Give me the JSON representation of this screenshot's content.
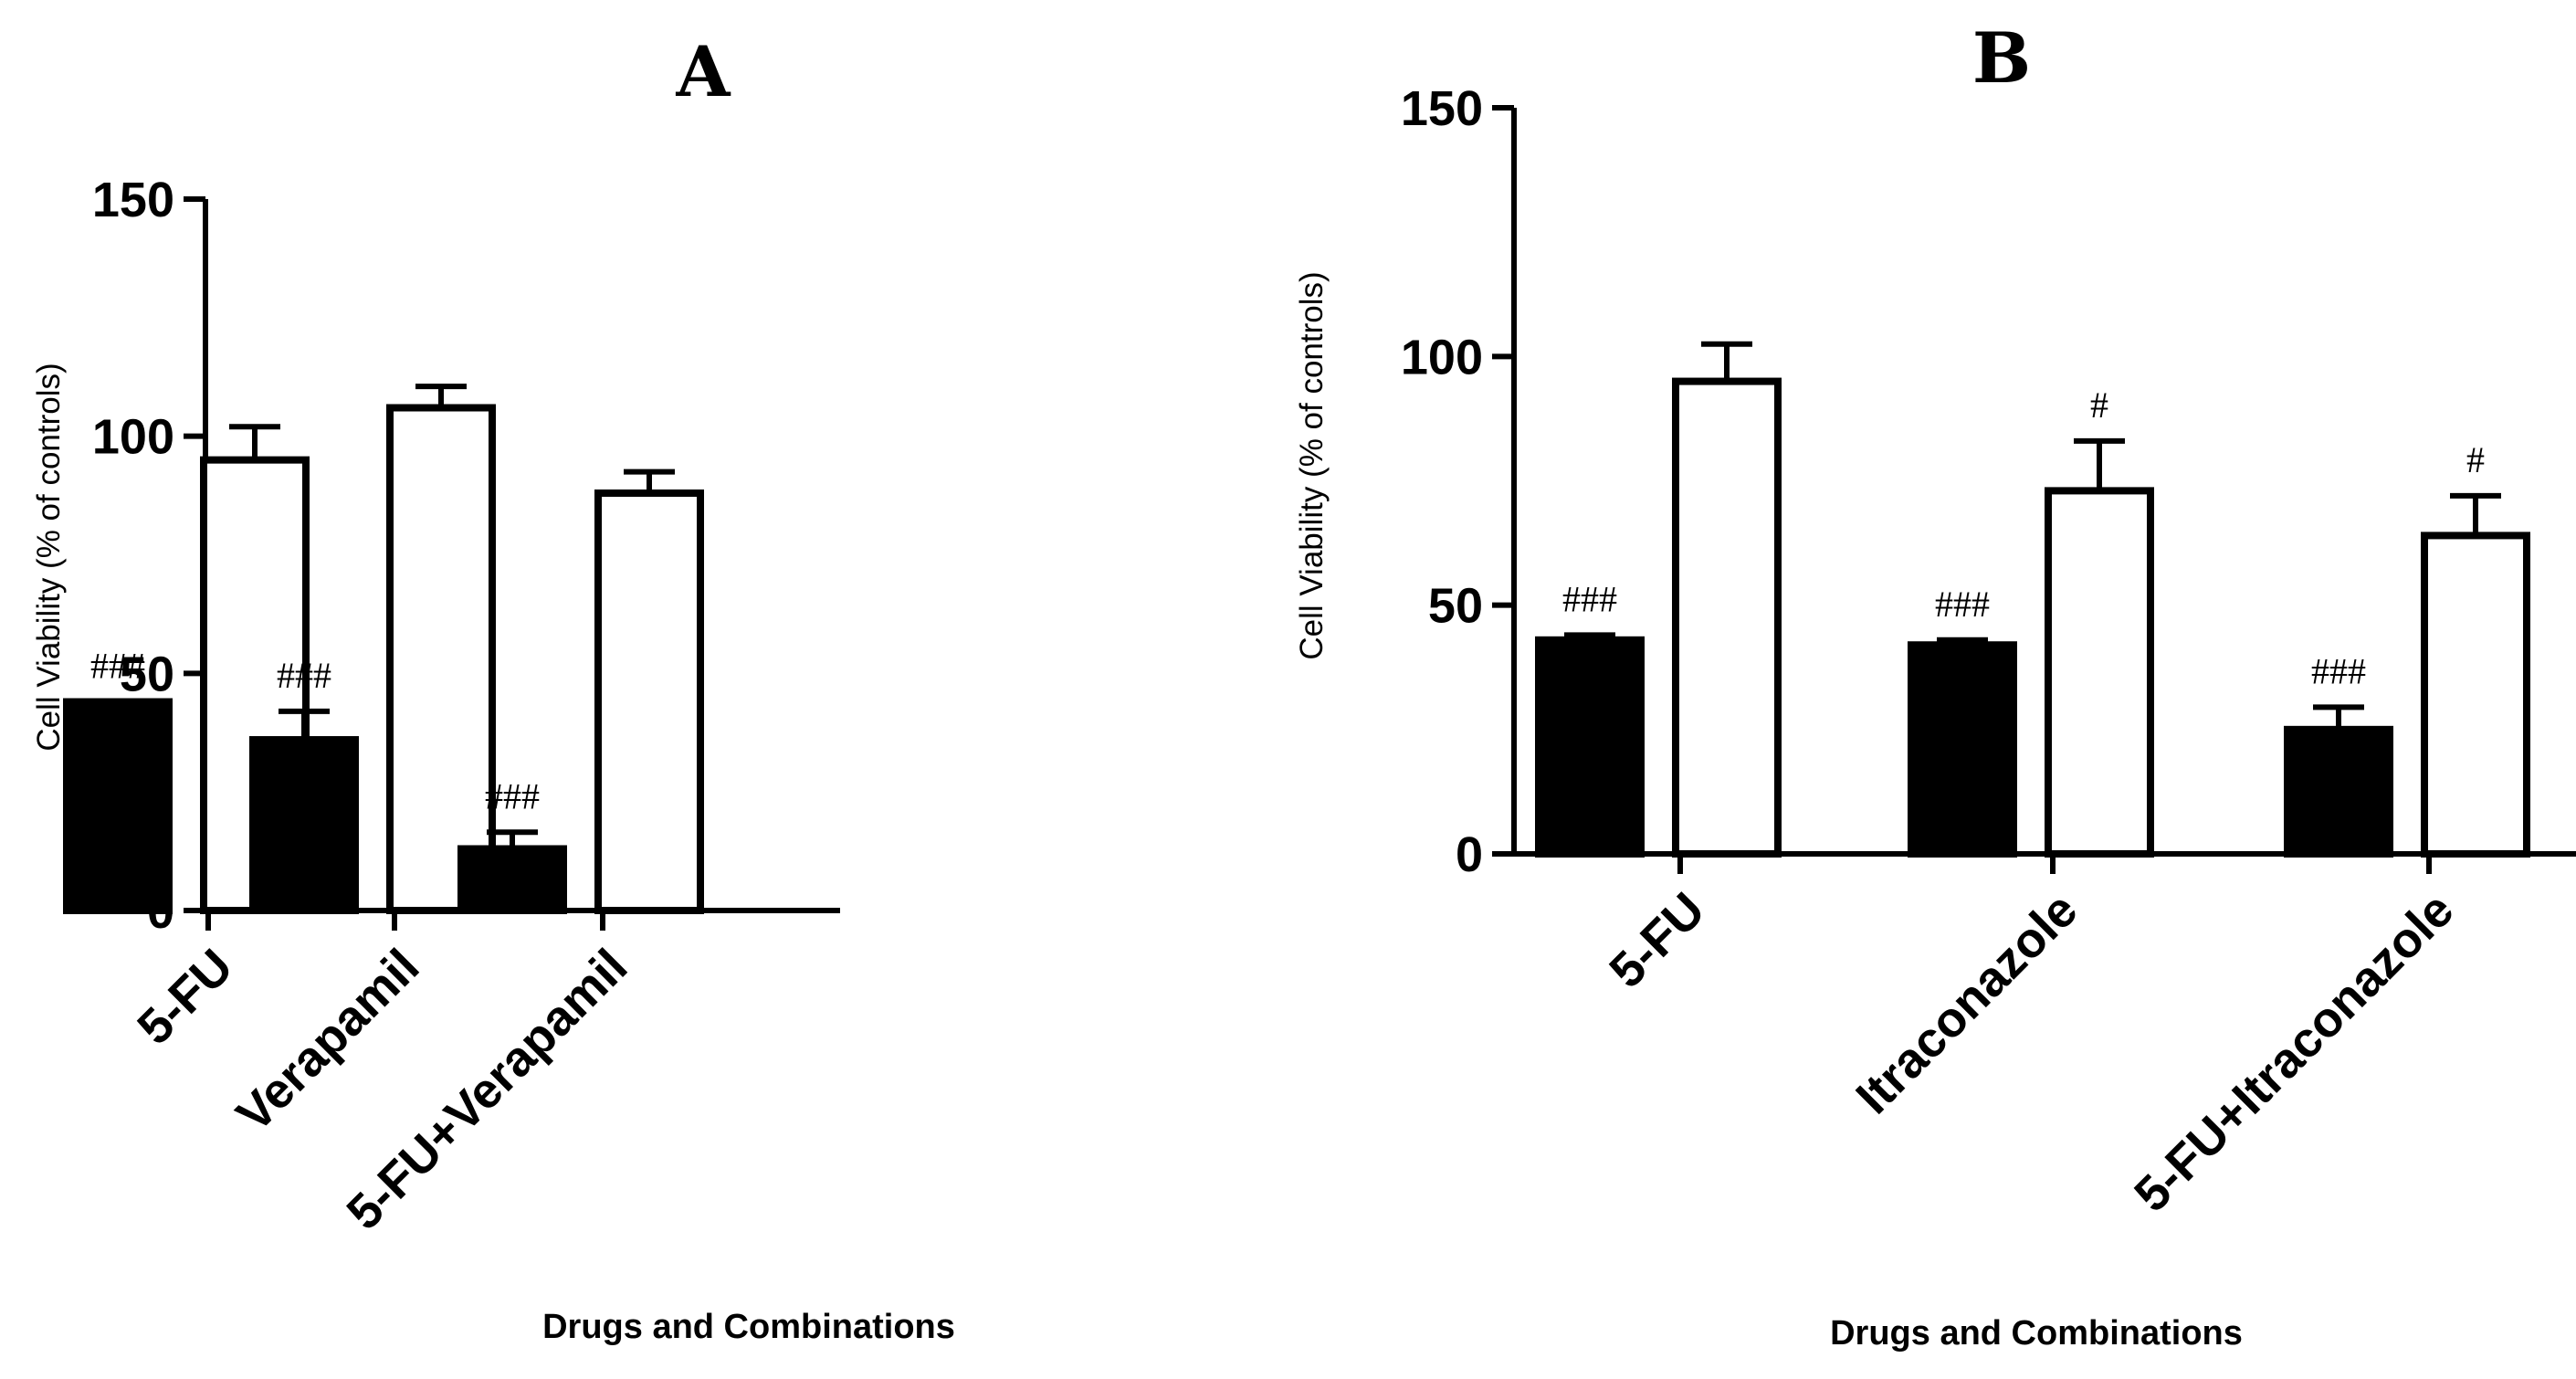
{
  "chart_data": [
    {
      "type": "bar",
      "panel": "A",
      "title": "A",
      "categories": [
        "5-FU",
        "Verapamil",
        "5-FU+Verapamil"
      ],
      "series": [
        {
          "name": "filled",
          "fill": "#000000",
          "values": [
            44,
            36,
            13
          ],
          "errors": [
            0,
            6,
            3.5
          ],
          "annotations": [
            "###",
            "###",
            "###"
          ]
        },
        {
          "name": "open",
          "fill": "#ffffff",
          "values": [
            95,
            106,
            88
          ],
          "errors": [
            7,
            4.5,
            4.5
          ],
          "annotations": [
            "",
            "",
            ""
          ]
        }
      ],
      "xlabel": "Drugs and Combinations",
      "ylabel": "Cell Viability (% of controls)",
      "ylim": [
        0,
        150
      ],
      "yticks": [
        0,
        50,
        100,
        150
      ],
      "grid": false,
      "legend": "none"
    },
    {
      "type": "bar",
      "panel": "B",
      "title": "B",
      "categories": [
        "5-FU",
        "Itraconazole",
        "5-FU+Itraconazole"
      ],
      "series": [
        {
          "name": "filled",
          "fill": "#000000",
          "values": [
            43,
            42,
            25
          ],
          "errors": [
            1,
            1,
            4.5
          ],
          "annotations": [
            "###",
            "###",
            "###"
          ]
        },
        {
          "name": "open",
          "fill": "#ffffff",
          "values": [
            95,
            73,
            64
          ],
          "errors": [
            7.5,
            10,
            8
          ],
          "annotations": [
            "",
            "#",
            "#"
          ]
        }
      ],
      "xlabel": "Drugs and Combinations",
      "ylabel": "Cell Viability (% of controls)",
      "ylim": [
        0,
        150
      ],
      "yticks": [
        0,
        50,
        100,
        150
      ],
      "grid": false,
      "legend": "none"
    }
  ]
}
